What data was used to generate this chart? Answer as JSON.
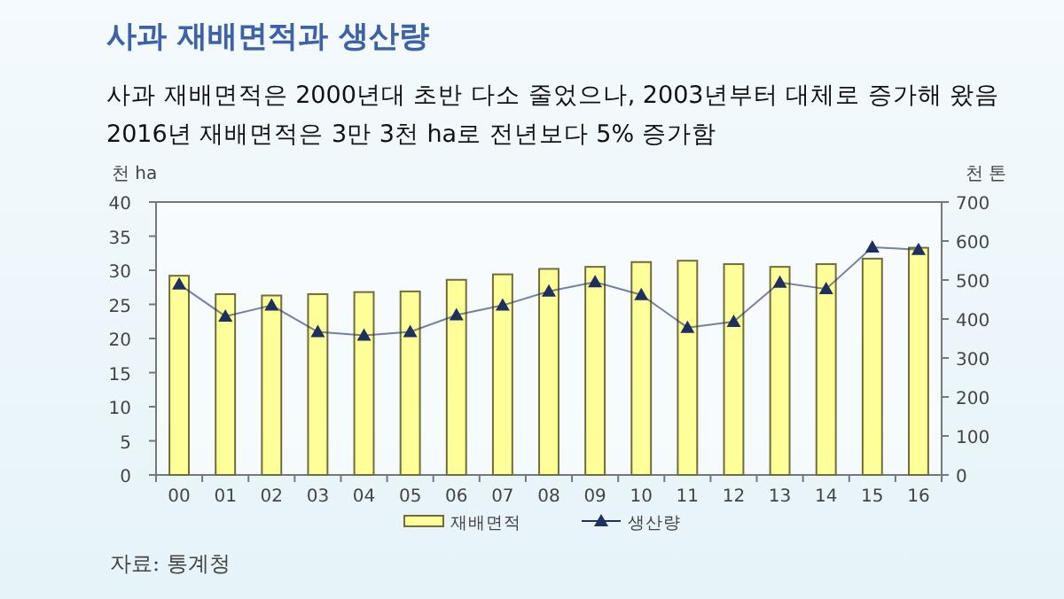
{
  "chart_data": {
    "type": "bar",
    "title": "사과 재배면적과 생산량",
    "subtitle": "사과 재배면적은 2000년대 초반 다소 줄었으나, 2003년부터 대체로 증가해 왔음\n2016년 재배면적은 3만 3천 ha로 전년보다 5% 증가함",
    "ylabel": "천 ha",
    "y2label": "천 톤",
    "categories": [
      "00",
      "01",
      "02",
      "03",
      "04",
      "05",
      "06",
      "07",
      "08",
      "09",
      "10",
      "11",
      "12",
      "13",
      "14",
      "15",
      "16"
    ],
    "series": [
      {
        "name": "재배면적",
        "color": "#ffff99",
        "values": [
          29.2,
          26.5,
          26.3,
          26.5,
          26.8,
          26.9,
          28.6,
          29.4,
          30.2,
          30.5,
          31.2,
          31.4,
          30.9,
          30.5,
          30.9,
          31.7,
          33.3
        ]
      },
      {
        "name": "생산량",
        "type": "line",
        "axis": "y2",
        "marker": "triangle",
        "color": "#1f3060",
        "values": [
          489,
          407,
          435,
          367,
          358,
          367,
          410,
          435,
          471,
          495,
          462,
          378,
          393,
          494,
          477,
          584,
          578
        ]
      }
    ],
    "ylim": [
      0,
      40
    ],
    "yticks": [
      0,
      5,
      10,
      15,
      20,
      25,
      30,
      35,
      40
    ],
    "y2lim": [
      0,
      700
    ],
    "y2ticks": [
      0,
      100,
      200,
      300,
      400,
      500,
      600,
      700
    ],
    "legend": "bottom",
    "annotations": [
      "자료: 통계청"
    ]
  }
}
